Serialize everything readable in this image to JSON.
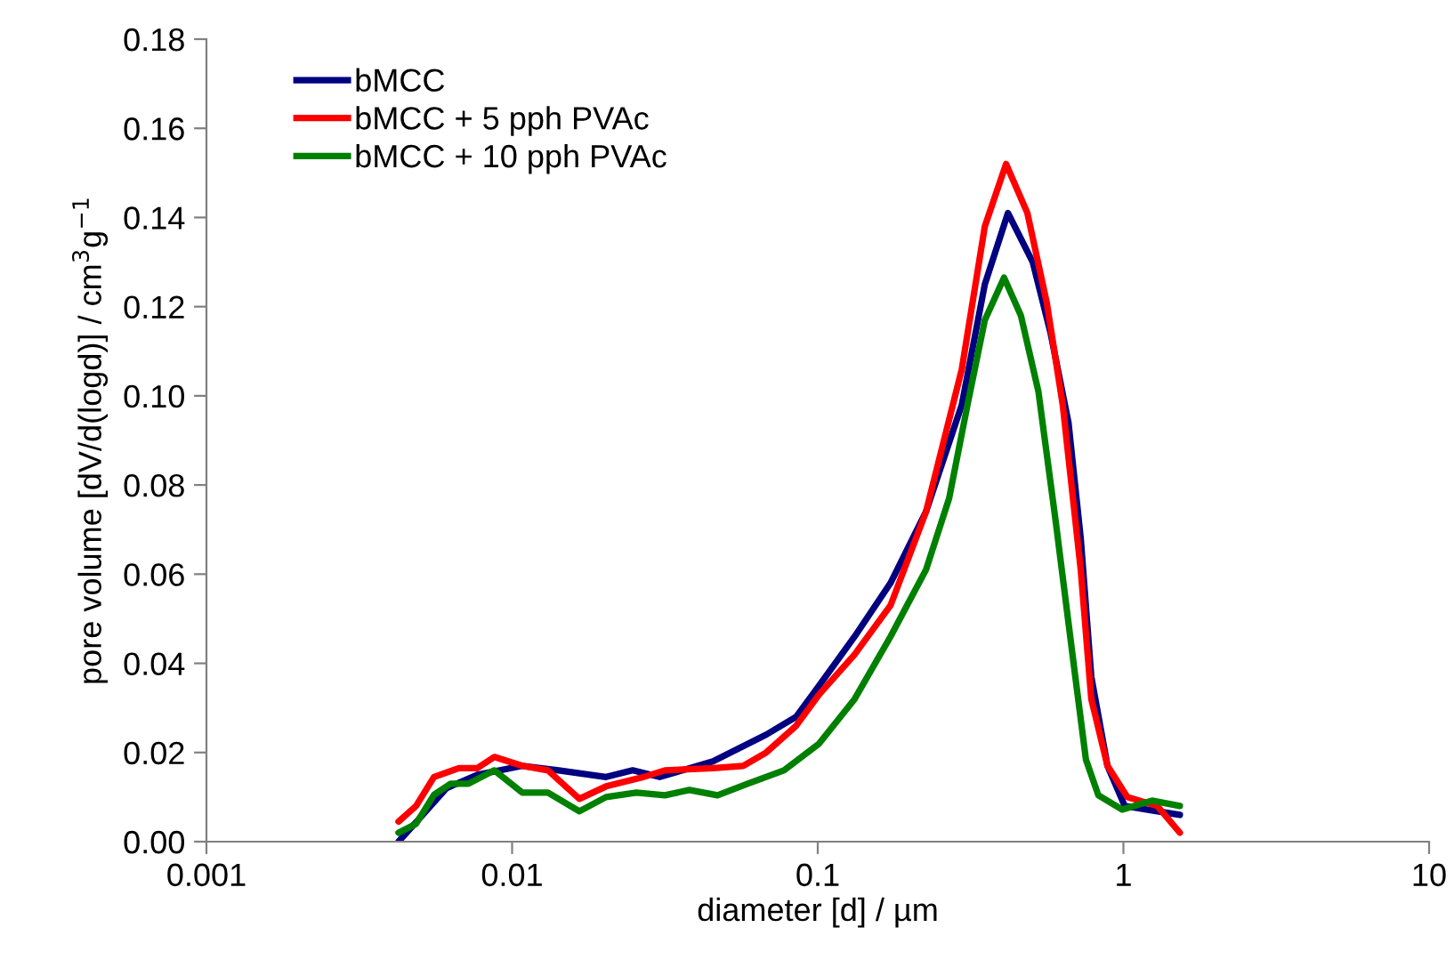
{
  "chart_data": {
    "type": "line",
    "xlabel": "diameter [d] / µm",
    "ylabel": "pore volume [dV/d(logd)] / cm$^{3}$g$^{−1}$",
    "log": "x",
    "xlim": [
      0.001,
      10
    ],
    "xticks": [
      0.001,
      0.01,
      0.1,
      1,
      10
    ],
    "ylim": [
      0,
      0.18
    ],
    "yticks": [
      {
        "value": 0,
        "label": "0.00"
      },
      0.02,
      0.04,
      0.06,
      0.08,
      {
        "value": 0.1,
        "label": "0.10"
      },
      0.12,
      0.14,
      0.16,
      0.18
    ],
    "grid": false,
    "legend": "top left",
    "marker": "none",
    "line_style": "solid",
    "series": [
      {
        "name": "bMCC",
        "color": "#000080",
        "x": [
          0.00425,
          0.0051,
          0.0061,
          0.0077,
          0.0108,
          0.0142,
          0.0203,
          0.0248,
          0.0304,
          0.0454,
          0.0678,
          0.085,
          0.101,
          0.132,
          0.173,
          0.226,
          0.296,
          0.352,
          0.419,
          0.505,
          0.578,
          0.661,
          0.725,
          0.785,
          0.887,
          1.01,
          1.24,
          1.53
        ],
        "values": [
          0.0,
          0.006,
          0.012,
          0.015,
          0.017,
          0.016,
          0.0145,
          0.016,
          0.0145,
          0.018,
          0.024,
          0.028,
          0.035,
          0.046,
          0.058,
          0.074,
          0.098,
          0.125,
          0.141,
          0.13,
          0.114,
          0.094,
          0.068,
          0.037,
          0.017,
          0.008,
          0.007,
          0.006
        ]
      },
      {
        "name": "bMCC + 5 pph PVAc",
        "color": "#ff0000",
        "x": [
          0.00425,
          0.00485,
          0.00555,
          0.0067,
          0.0077,
          0.00875,
          0.0108,
          0.0131,
          0.0166,
          0.0203,
          0.0266,
          0.0316,
          0.0454,
          0.057,
          0.0678,
          0.085,
          0.101,
          0.132,
          0.173,
          0.226,
          0.296,
          0.352,
          0.413,
          0.485,
          0.561,
          0.633,
          0.725,
          0.785,
          0.887,
          1.03,
          1.29,
          1.53
        ],
        "values": [
          0.0045,
          0.008,
          0.0145,
          0.0165,
          0.0165,
          0.019,
          0.017,
          0.016,
          0.0096,
          0.0124,
          0.0144,
          0.016,
          0.0165,
          0.017,
          0.02,
          0.026,
          0.033,
          0.042,
          0.053,
          0.074,
          0.106,
          0.138,
          0.152,
          0.141,
          0.121,
          0.098,
          0.061,
          0.032,
          0.017,
          0.01,
          0.008,
          0.002
        ]
      },
      {
        "name": "bMCC + 10 pph PVAc",
        "color": "#008000",
        "x": [
          0.00425,
          0.00485,
          0.00555,
          0.0063,
          0.0072,
          0.00875,
          0.0108,
          0.0131,
          0.0166,
          0.0203,
          0.0255,
          0.0316,
          0.038,
          0.047,
          0.059,
          0.0775,
          0.101,
          0.132,
          0.173,
          0.226,
          0.269,
          0.309,
          0.352,
          0.407,
          0.462,
          0.527,
          0.6,
          0.687,
          0.754,
          0.828,
          0.99,
          1.24,
          1.53
        ],
        "values": [
          0.002,
          0.004,
          0.0105,
          0.013,
          0.013,
          0.016,
          0.011,
          0.011,
          0.0068,
          0.01,
          0.011,
          0.0104,
          0.0116,
          0.0104,
          0.013,
          0.016,
          0.022,
          0.032,
          0.046,
          0.061,
          0.077,
          0.098,
          0.117,
          0.1265,
          0.118,
          0.101,
          0.072,
          0.04,
          0.0184,
          0.0104,
          0.0072,
          0.0092,
          0.008
        ]
      }
    ]
  }
}
